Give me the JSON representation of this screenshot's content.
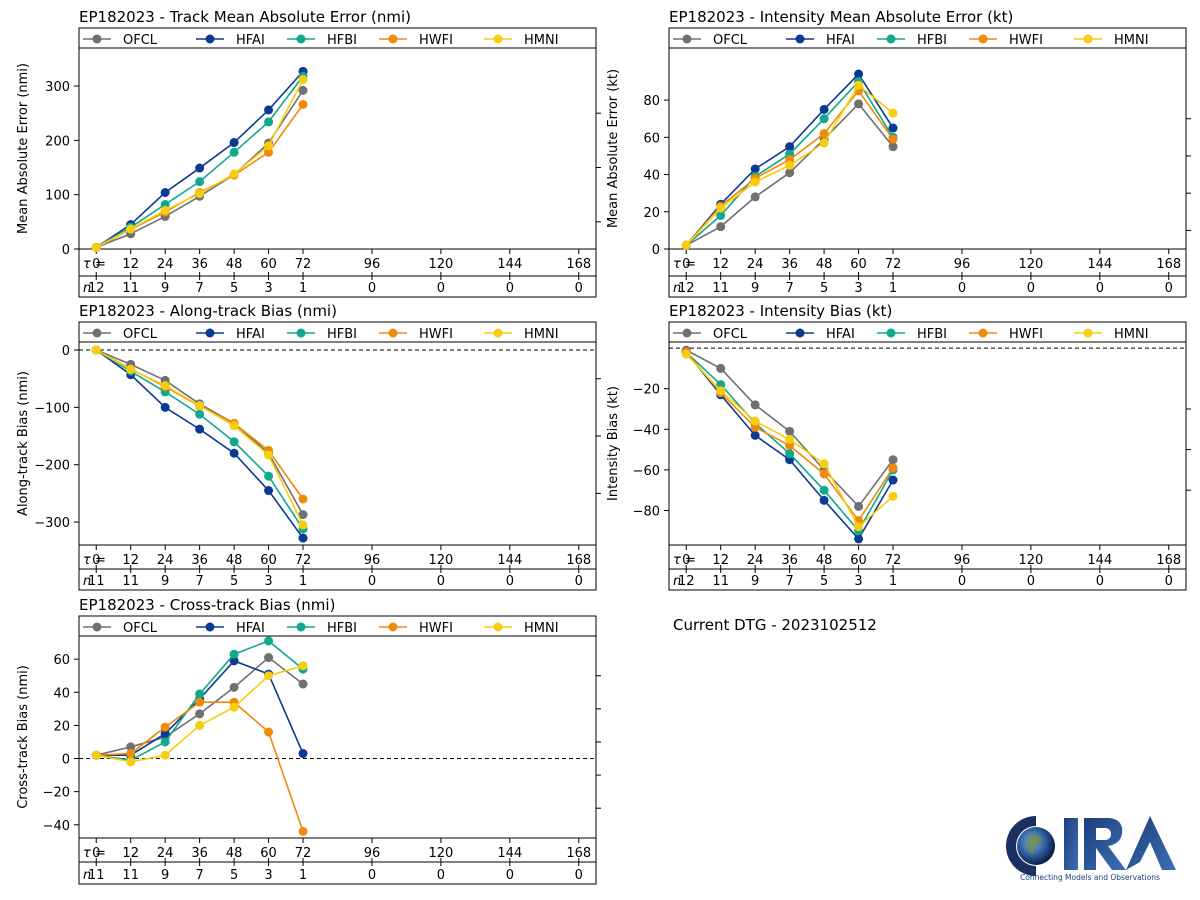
{
  "dtg_label": "Current DTG - 2023102512",
  "logo": {
    "name": "CIRA",
    "tagline": "Connecting Models and Observations"
  },
  "legend": {
    "items": [
      {
        "name": "OFCL",
        "color": "#707070"
      },
      {
        "name": "HFAI",
        "color": "#0b3a93"
      },
      {
        "name": "HFBI",
        "color": "#10a88e"
      },
      {
        "name": "HWFI",
        "color": "#ef8a0a"
      },
      {
        "name": "HMNI",
        "color": "#f7cd10"
      }
    ]
  },
  "tau_symbol": "τ =",
  "n_symbol": "n",
  "chart_data": [
    {
      "id": "track-mae",
      "type": "line",
      "title": "EP182023 - Track Mean Absolute Error (nmi)",
      "ylabel": "Mean Absolute Error (nmi)",
      "ylim": [
        0,
        370
      ],
      "yticks": [
        0,
        100,
        200,
        300
      ],
      "zero_line": false,
      "x": [
        0,
        12,
        24,
        36,
        48,
        60,
        72
      ],
      "xlim": [
        -6,
        174
      ],
      "tau_ticks": [
        0,
        12,
        24,
        36,
        48,
        60,
        72,
        96,
        120,
        144,
        168
      ],
      "n_values": [
        12,
        11,
        9,
        7,
        5,
        3,
        1,
        0,
        0,
        0,
        0
      ],
      "series": [
        {
          "name": "OFCL",
          "values": [
            3,
            28,
            60,
            97,
            137,
            195,
            292
          ]
        },
        {
          "name": "HFAI",
          "values": [
            3,
            45,
            104,
            149,
            196,
            256,
            327
          ]
        },
        {
          "name": "HFBI",
          "values": [
            3,
            40,
            82,
            124,
            178,
            234,
            318
          ]
        },
        {
          "name": "HWFI",
          "values": [
            3,
            36,
            68,
            104,
            136,
            178,
            266
          ]
        },
        {
          "name": "HMNI",
          "values": [
            3,
            37,
            71,
            102,
            138,
            190,
            312
          ]
        }
      ]
    },
    {
      "id": "intensity-mae",
      "type": "line",
      "title": "EP182023 - Intensity Mean Absolute Error (kt)",
      "ylabel": "Mean Absolute Error (kt)",
      "ylim": [
        0,
        108
      ],
      "yticks": [
        0,
        20,
        40,
        60,
        80
      ],
      "zero_line": false,
      "x": [
        0,
        12,
        24,
        36,
        48,
        60,
        72
      ],
      "xlim": [
        -6,
        174
      ],
      "tau_ticks": [
        0,
        12,
        24,
        36,
        48,
        60,
        72,
        96,
        120,
        144,
        168
      ],
      "n_values": [
        12,
        11,
        9,
        7,
        5,
        3,
        1,
        0,
        0,
        0,
        0
      ],
      "series": [
        {
          "name": "OFCL",
          "values": [
            2,
            12,
            28,
            41,
            59,
            78,
            55
          ]
        },
        {
          "name": "HFAI",
          "values": [
            2,
            24,
            43,
            55,
            75,
            94,
            65
          ]
        },
        {
          "name": "HFBI",
          "values": [
            2,
            18,
            39,
            51,
            70,
            90,
            60
          ]
        },
        {
          "name": "HWFI",
          "values": [
            2,
            23,
            38,
            48,
            62,
            85,
            59
          ]
        },
        {
          "name": "HMNI",
          "values": [
            2,
            22,
            36,
            45,
            57,
            88,
            73
          ]
        }
      ]
    },
    {
      "id": "along-track-bias",
      "type": "line",
      "title": "EP182023 - Along-track Bias (nmi)",
      "ylabel": "Along-track Bias (nmi)",
      "ylim": [
        -340,
        14
      ],
      "yticks": [
        0,
        -100,
        -200,
        -300
      ],
      "zero_line": true,
      "x": [
        0,
        12,
        24,
        36,
        48,
        60,
        72
      ],
      "xlim": [
        -6,
        174
      ],
      "tau_ticks": [
        0,
        12,
        24,
        36,
        48,
        60,
        72,
        96,
        120,
        144,
        168
      ],
      "n_values": [
        11,
        11,
        9,
        7,
        5,
        3,
        1,
        0,
        0,
        0,
        0
      ],
      "series": [
        {
          "name": "OFCL",
          "values": [
            0,
            -25,
            -53,
            -94,
            -128,
            -180,
            -287
          ]
        },
        {
          "name": "HFAI",
          "values": [
            0,
            -43,
            -100,
            -138,
            -180,
            -245,
            -328
          ]
        },
        {
          "name": "HFBI",
          "values": [
            0,
            -37,
            -73,
            -112,
            -160,
            -220,
            -312
          ]
        },
        {
          "name": "HWFI",
          "values": [
            0,
            -33,
            -64,
            -98,
            -128,
            -175,
            -260
          ]
        },
        {
          "name": "HMNI",
          "values": [
            0,
            -34,
            -62,
            -97,
            -132,
            -183,
            -305
          ]
        }
      ]
    },
    {
      "id": "intensity-bias",
      "type": "line",
      "title": "EP182023 - Intensity Bias (kt)",
      "ylabel": "Intensity Bias (kt)",
      "ylim": [
        -97,
        3
      ],
      "yticks": [
        -20,
        -40,
        -60,
        -80
      ],
      "zero_line": true,
      "x": [
        0,
        12,
        24,
        36,
        48,
        60,
        72
      ],
      "xlim": [
        -6,
        174
      ],
      "tau_ticks": [
        0,
        12,
        24,
        36,
        48,
        60,
        72,
        96,
        120,
        144,
        168
      ],
      "n_values": [
        12,
        11,
        9,
        7,
        5,
        3,
        1,
        0,
        0,
        0,
        0
      ],
      "series": [
        {
          "name": "OFCL",
          "values": [
            -1,
            -10,
            -28,
            -41,
            -60,
            -78,
            -55
          ]
        },
        {
          "name": "HFAI",
          "values": [
            -2,
            -23,
            -43,
            -55,
            -75,
            -94,
            -65
          ]
        },
        {
          "name": "HFBI",
          "values": [
            -2,
            -18,
            -37,
            -52,
            -70,
            -90,
            -60
          ]
        },
        {
          "name": "HWFI",
          "values": [
            -2,
            -22,
            -39,
            -48,
            -62,
            -85,
            -59
          ]
        },
        {
          "name": "HMNI",
          "values": [
            -3,
            -21,
            -36,
            -45,
            -57,
            -88,
            -73
          ]
        }
      ]
    },
    {
      "id": "cross-track-bias",
      "type": "line",
      "title": "EP182023 - Cross-track Bias (nmi)",
      "ylabel": "Cross-track Bias (nmi)",
      "ylim": [
        -48,
        74
      ],
      "yticks": [
        60,
        40,
        20,
        0,
        -20,
        -40
      ],
      "zero_line": true,
      "x": [
        0,
        12,
        24,
        36,
        48,
        60,
        72
      ],
      "xlim": [
        -6,
        174
      ],
      "tau_ticks": [
        0,
        12,
        24,
        36,
        48,
        60,
        72,
        96,
        120,
        144,
        168
      ],
      "n_values": [
        11,
        11,
        9,
        7,
        5,
        3,
        1,
        0,
        0,
        0,
        0
      ],
      "series": [
        {
          "name": "OFCL",
          "values": [
            2,
            7,
            13,
            27,
            43,
            61,
            45
          ]
        },
        {
          "name": "HFAI",
          "values": [
            2,
            2,
            15,
            36,
            59,
            51,
            3
          ]
        },
        {
          "name": "HFBI",
          "values": [
            2,
            -1,
            10,
            39,
            63,
            71,
            54
          ]
        },
        {
          "name": "HWFI",
          "values": [
            2,
            3,
            19,
            34,
            34,
            16,
            -44
          ]
        },
        {
          "name": "HMNI",
          "values": [
            2,
            -2,
            2,
            20,
            31,
            50,
            56
          ]
        }
      ]
    }
  ]
}
